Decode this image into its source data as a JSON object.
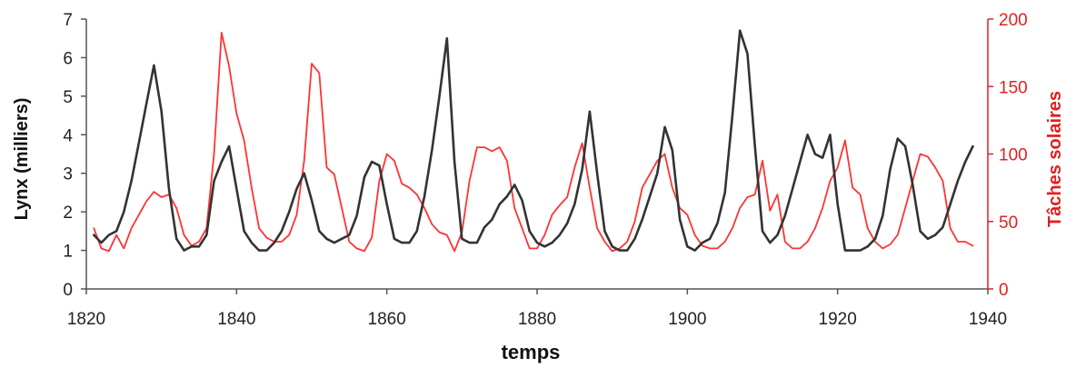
{
  "chart_data": {
    "type": "line",
    "title": "",
    "xlabel": "temps",
    "ylabel_left": "Lynx (milliers)",
    "ylabel_right": "Tâches solaires",
    "xlim": [
      1820,
      1940
    ],
    "xticks": [
      1820,
      1840,
      1860,
      1880,
      1900,
      1920,
      1940
    ],
    "ylim_left": [
      0,
      7
    ],
    "yticks_left": [
      0,
      1,
      2,
      3,
      4,
      5,
      6,
      7
    ],
    "ylim_right": [
      0,
      200
    ],
    "yticks_right": [
      0,
      50,
      100,
      150,
      200
    ],
    "grid": false,
    "legend": "none",
    "series": [
      {
        "axis": "left",
        "color": "#333333",
        "x": [
          1821,
          1822,
          1823,
          1824,
          1825,
          1826,
          1827,
          1828,
          1829,
          1830,
          1831,
          1832,
          1833,
          1834,
          1835,
          1836,
          1837,
          1838,
          1839,
          1840,
          1841,
          1842,
          1843,
          1844,
          1845,
          1846,
          1847,
          1848,
          1849,
          1850,
          1851,
          1852,
          1853,
          1854,
          1855,
          1856,
          1857,
          1858,
          1859,
          1860,
          1861,
          1862,
          1863,
          1864,
          1865,
          1866,
          1867,
          1868,
          1869,
          1870,
          1871,
          1872,
          1873,
          1874,
          1875,
          1876,
          1877,
          1878,
          1879,
          1880,
          1881,
          1882,
          1883,
          1884,
          1885,
          1886,
          1887,
          1888,
          1889,
          1890,
          1891,
          1892,
          1893,
          1894,
          1895,
          1896,
          1897,
          1898,
          1899,
          1900,
          1901,
          1902,
          1903,
          1904,
          1905,
          1906,
          1907,
          1908,
          1909,
          1910,
          1911,
          1912,
          1913,
          1914,
          1915,
          1916,
          1917,
          1918,
          1919,
          1920,
          1921,
          1922,
          1923,
          1924,
          1925,
          1926,
          1927,
          1928,
          1929,
          1930,
          1931,
          1932,
          1933,
          1934,
          1935,
          1936,
          1937,
          1938
        ],
        "values": [
          1.4,
          1.2,
          1.4,
          1.5,
          2.0,
          2.8,
          3.8,
          4.8,
          5.8,
          4.6,
          2.6,
          1.3,
          1.0,
          1.1,
          1.1,
          1.4,
          2.8,
          3.3,
          3.7,
          2.6,
          1.5,
          1.2,
          1.0,
          1.0,
          1.2,
          1.5,
          2.0,
          2.6,
          3.0,
          2.3,
          1.5,
          1.3,
          1.2,
          1.3,
          1.4,
          1.9,
          2.9,
          3.3,
          3.2,
          2.2,
          1.3,
          1.2,
          1.2,
          1.5,
          2.4,
          3.6,
          5.0,
          6.5,
          3.3,
          1.3,
          1.2,
          1.2,
          1.6,
          1.8,
          2.2,
          2.4,
          2.7,
          2.3,
          1.5,
          1.2,
          1.1,
          1.2,
          1.4,
          1.7,
          2.2,
          3.1,
          4.6,
          3.0,
          1.5,
          1.1,
          1.0,
          1.0,
          1.3,
          1.8,
          2.4,
          3.0,
          4.2,
          3.6,
          1.8,
          1.1,
          1.0,
          1.2,
          1.3,
          1.7,
          2.5,
          4.5,
          6.7,
          6.1,
          3.7,
          1.5,
          1.2,
          1.4,
          1.9,
          2.6,
          3.3,
          4.0,
          3.5,
          3.4,
          4.0,
          2.2,
          1.0,
          1.0,
          1.0,
          1.1,
          1.3,
          1.9,
          3.1,
          3.9,
          3.7,
          2.7,
          1.5,
          1.3,
          1.4,
          1.6,
          2.2,
          2.8,
          3.3,
          3.7
        ]
      },
      {
        "axis": "right",
        "color": "#ff3333",
        "x": [
          1821,
          1822,
          1823,
          1824,
          1825,
          1826,
          1827,
          1828,
          1829,
          1830,
          1831,
          1832,
          1833,
          1834,
          1835,
          1836,
          1837,
          1838,
          1839,
          1840,
          1841,
          1842,
          1843,
          1844,
          1845,
          1846,
          1847,
          1848,
          1849,
          1850,
          1851,
          1852,
          1853,
          1854,
          1855,
          1856,
          1857,
          1858,
          1859,
          1860,
          1861,
          1862,
          1863,
          1864,
          1865,
          1866,
          1867,
          1868,
          1869,
          1870,
          1871,
          1872,
          1873,
          1874,
          1875,
          1876,
          1877,
          1878,
          1879,
          1880,
          1881,
          1882,
          1883,
          1884,
          1885,
          1886,
          1887,
          1888,
          1889,
          1890,
          1891,
          1892,
          1893,
          1894,
          1895,
          1896,
          1897,
          1898,
          1899,
          1900,
          1901,
          1902,
          1903,
          1904,
          1905,
          1906,
          1907,
          1908,
          1909,
          1910,
          1911,
          1912,
          1913,
          1914,
          1915,
          1916,
          1917,
          1918,
          1919,
          1920,
          1921,
          1922,
          1923,
          1924,
          1925,
          1926,
          1927,
          1928,
          1929,
          1930,
          1931,
          1932,
          1933,
          1934,
          1935,
          1936,
          1937,
          1938
        ],
        "values": [
          45,
          30,
          28,
          40,
          30,
          45,
          55,
          65,
          72,
          68,
          70,
          60,
          40,
          32,
          35,
          45,
          100,
          190,
          165,
          130,
          110,
          75,
          45,
          38,
          35,
          35,
          40,
          55,
          95,
          167,
          160,
          90,
          85,
          60,
          35,
          30,
          28,
          38,
          80,
          100,
          95,
          78,
          75,
          70,
          60,
          48,
          42,
          40,
          28,
          42,
          80,
          105,
          105,
          102,
          105,
          95,
          60,
          45,
          30,
          30,
          40,
          55,
          62,
          68,
          90,
          108,
          75,
          45,
          35,
          28,
          30,
          35,
          50,
          75,
          85,
          95,
          100,
          75,
          60,
          55,
          40,
          32,
          30,
          30,
          35,
          45,
          60,
          68,
          70,
          95,
          58,
          70,
          35,
          30,
          30,
          35,
          45,
          60,
          80,
          90,
          110,
          75,
          70,
          45,
          35,
          30,
          33,
          40,
          60,
          80,
          100,
          98,
          90,
          80,
          45,
          35,
          35,
          32
        ]
      }
    ]
  }
}
